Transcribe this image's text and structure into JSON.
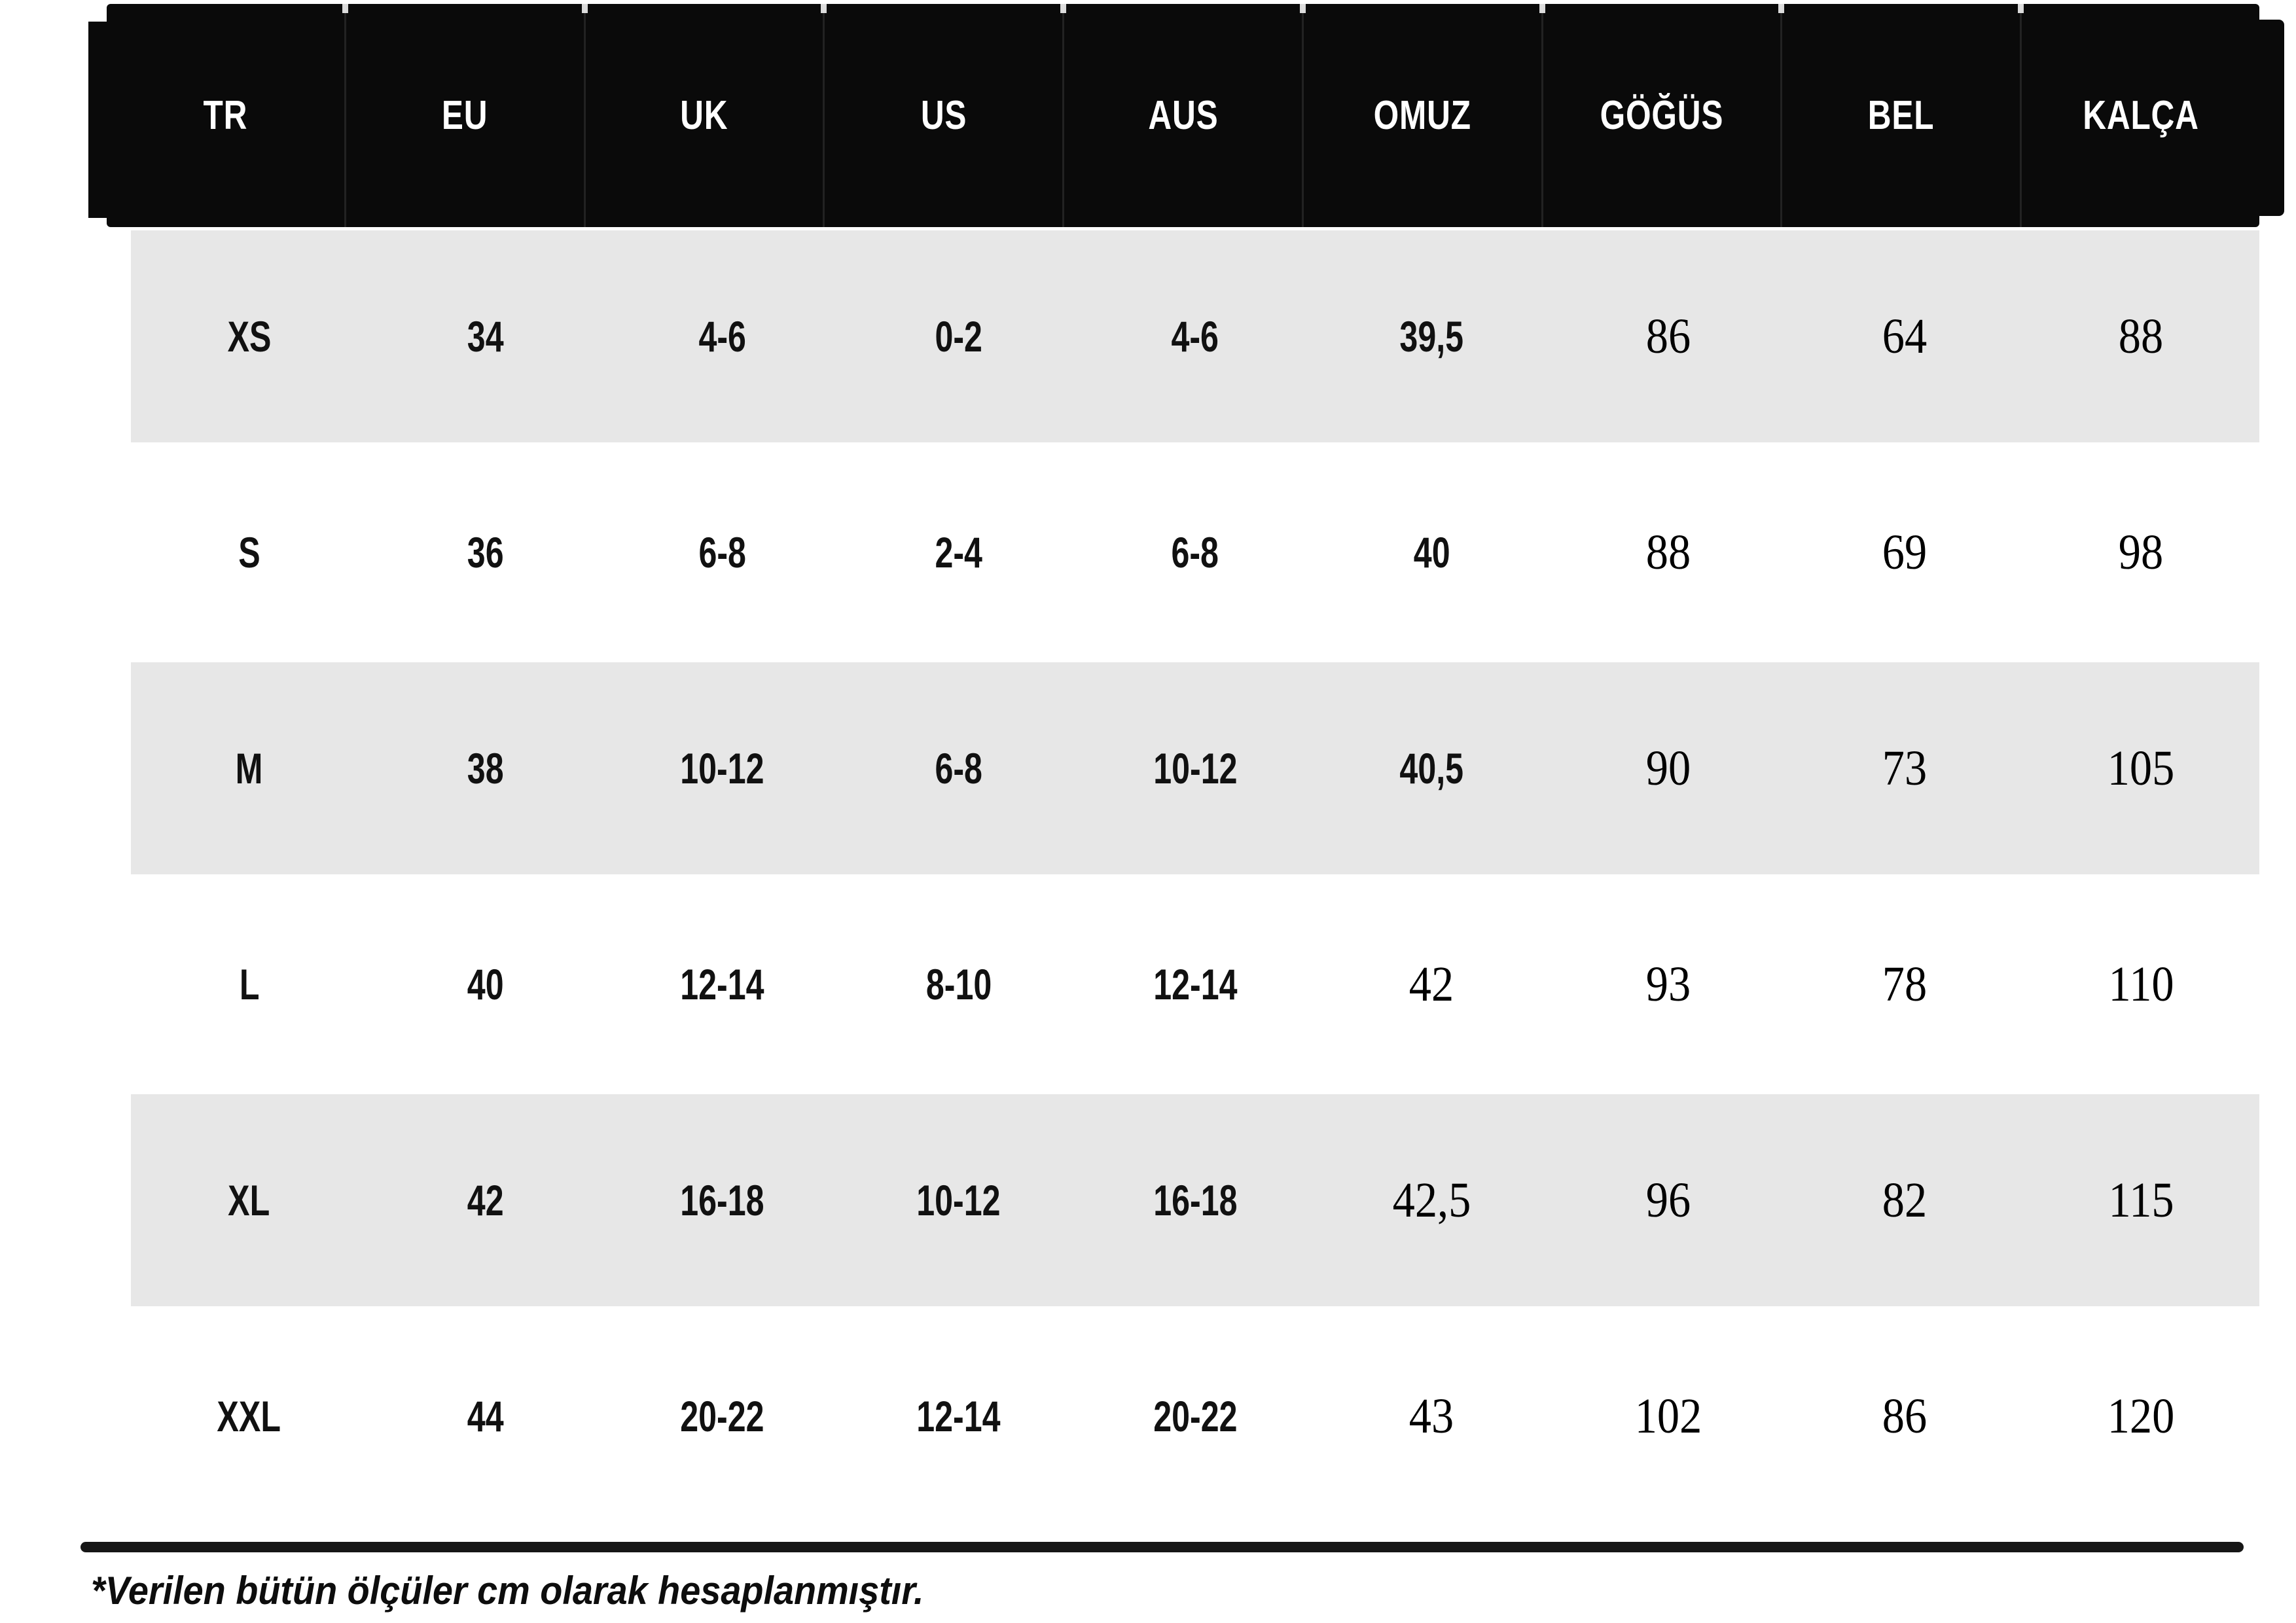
{
  "chart_data": {
    "type": "table",
    "columns": [
      "TR",
      "EU",
      "UK",
      "US",
      "AUS",
      "OMUZ",
      "GÖĞÜS",
      "BEL",
      "KALÇA"
    ],
    "rows": [
      [
        "XS",
        "34",
        "4-6",
        "0-2",
        "4-6",
        "39,5",
        "86",
        "64",
        "88"
      ],
      [
        "S",
        "36",
        "6-8",
        "2-4",
        "6-8",
        "40",
        "88",
        "69",
        "98"
      ],
      [
        "M",
        "38",
        "10-12",
        "6-8",
        "10-12",
        "40,5",
        "90",
        "73",
        "105"
      ],
      [
        "L",
        "40",
        "12-14",
        "8-10",
        "12-14",
        "42",
        "93",
        "78",
        "110"
      ],
      [
        "XL",
        "42",
        "16-18",
        "10-12",
        "16-18",
        "42,5",
        "96",
        "82",
        "115"
      ],
      [
        "XXL",
        "44",
        "20-22",
        "12-14",
        "20-22",
        "43",
        "102",
        "86",
        "120"
      ]
    ],
    "large_serif_from_col": [
      6,
      6,
      6,
      5,
      5,
      5
    ],
    "shaded_row_indices": [
      0,
      2,
      4
    ],
    "footnote": "*Verilen bütün ölçüler cm olarak hesaplanmıştır.",
    "layout": {
      "legend_position": "none",
      "grid": "off"
    }
  },
  "colors": {
    "header_bg": "#0a0a0a",
    "header_text": "#ffffff",
    "row_shaded": "#e7e7e7",
    "row_plain": "#ffffff",
    "text": "#111111",
    "rule": "#161616"
  }
}
